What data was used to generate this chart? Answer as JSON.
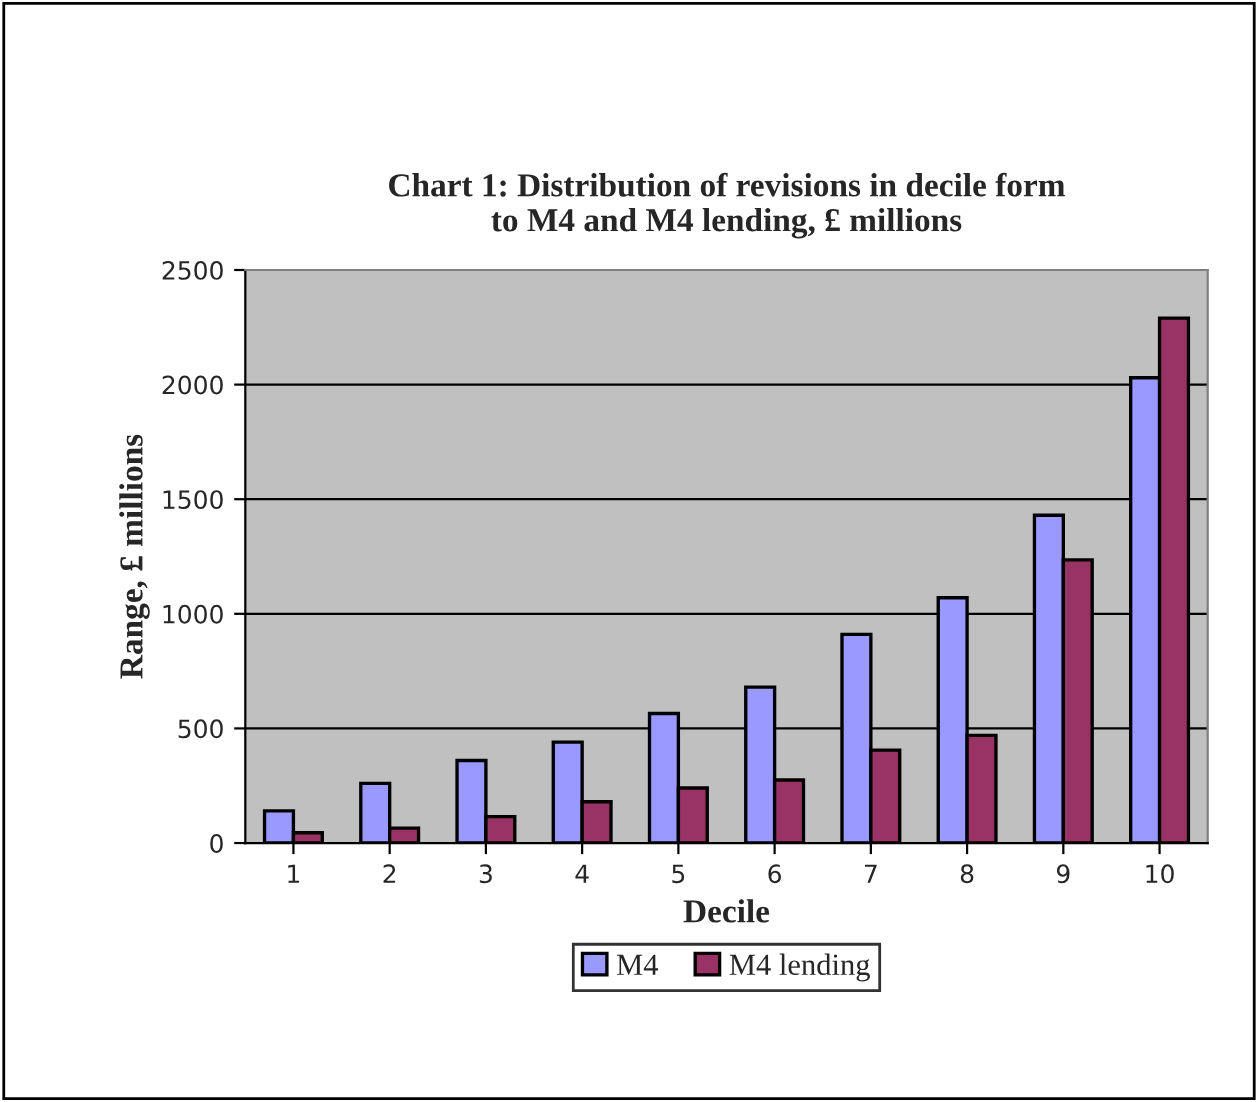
{
  "chart_data": {
    "type": "bar",
    "title": "Chart 1: Distribution of revisions in decile form\nto M4 and M4 lending, £ millions",
    "xlabel": "Decile",
    "ylabel": "Range, £ millions",
    "categories": [
      "1",
      "2",
      "3",
      "4",
      "5",
      "6",
      "7",
      "8",
      "9",
      "10"
    ],
    "series": [
      {
        "name": "M4",
        "color": "#9999ff",
        "values": [
          140,
          260,
          360,
          440,
          565,
          680,
          910,
          1070,
          1430,
          2030
        ]
      },
      {
        "name": "M4 lending",
        "color": "#993366",
        "values": [
          45,
          65,
          115,
          180,
          240,
          275,
          405,
          470,
          1235,
          2290
        ]
      }
    ],
    "ylim": [
      0,
      2500
    ],
    "yticks": [
      0,
      500,
      1000,
      1500,
      2000,
      2500
    ],
    "grid": "y",
    "legend": "bottom"
  }
}
